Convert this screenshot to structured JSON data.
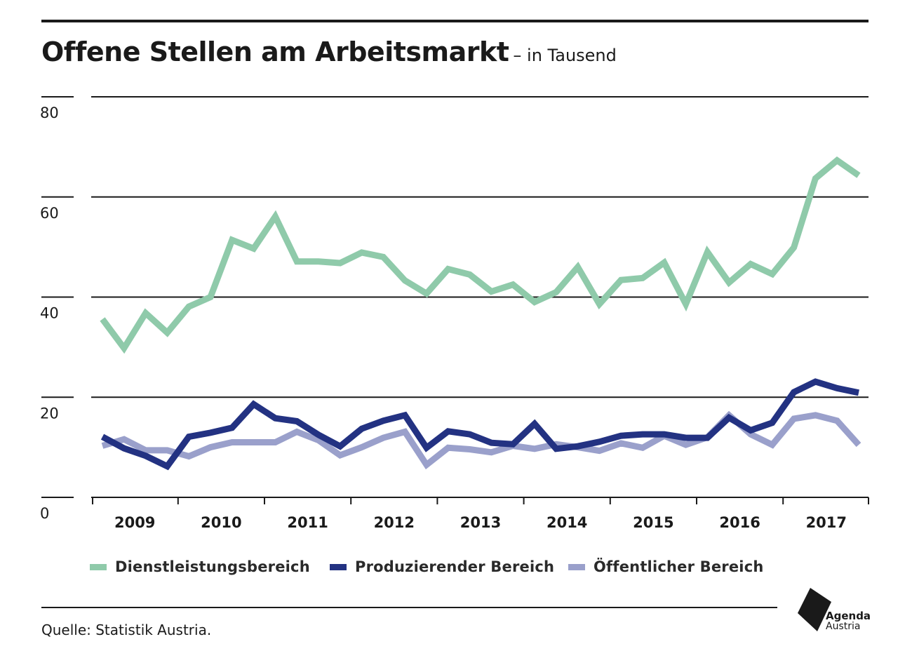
{
  "title": "Offene Stellen am Arbeitsmarkt",
  "subtitle": "– in Tausend",
  "source": "Quelle: Statistik Austria.",
  "logo": {
    "line1": "Agenda",
    "line2": "Austria",
    "icon": "agenda-austria-logo"
  },
  "colors": {
    "Dienstleistungsbereich": "#8fcaaa",
    "Produzierender Bereich": "#233282",
    "Öffentlicher Bereich": "#9aa0cb",
    "gridline": "#1a1a1a",
    "text": "#1a1a1a"
  },
  "chart_data": {
    "type": "line",
    "title": "Offene Stellen am Arbeitsmarkt",
    "subtitle": "– in Tausend",
    "xlabel": "",
    "ylabel": "",
    "ylim": [
      0,
      80
    ],
    "yticks": [
      0,
      20,
      40,
      60,
      80
    ],
    "grid": true,
    "legend_position": "bottom",
    "x_categories": [
      "2009",
      "2010",
      "2011",
      "2012",
      "2013",
      "2014",
      "2015",
      "2016",
      "2017"
    ],
    "x_periods": [
      "2009-Q1",
      "2009-Q2",
      "2009-Q3",
      "2009-Q4",
      "2010-Q1",
      "2010-Q2",
      "2010-Q3",
      "2010-Q4",
      "2011-Q1",
      "2011-Q2",
      "2011-Q3",
      "2011-Q4",
      "2012-Q1",
      "2012-Q2",
      "2012-Q3",
      "2012-Q4",
      "2013-Q1",
      "2013-Q2",
      "2013-Q3",
      "2013-Q4",
      "2014-Q1",
      "2014-Q2",
      "2014-Q3",
      "2014-Q4",
      "2015-Q1",
      "2015-Q2",
      "2015-Q3",
      "2015-Q4",
      "2016-Q1",
      "2016-Q2",
      "2016-Q3",
      "2016-Q4",
      "2017-Q1",
      "2017-Q2",
      "2017-Q3",
      "2017-Q4"
    ],
    "series": [
      {
        "name": "Dienstleistungsbereich",
        "values": [
          35.6,
          29.8,
          36.8,
          32.9,
          38.1,
          40.0,
          51.4,
          49.7,
          56.1,
          47.1,
          47.1,
          46.8,
          48.9,
          48.0,
          43.3,
          40.7,
          45.6,
          44.5,
          41.1,
          42.5,
          39.0,
          41.0,
          46.0,
          38.6,
          43.4,
          43.8,
          46.9,
          38.6,
          49.0,
          42.9,
          46.6,
          44.6,
          49.9,
          63.7,
          67.3,
          64.3
        ]
      },
      {
        "name": "Produzierender Bereich",
        "values": [
          12.1,
          9.8,
          8.3,
          6.2,
          12.1,
          12.9,
          13.9,
          18.6,
          15.8,
          15.2,
          12.5,
          10.2,
          13.7,
          15.3,
          16.4,
          9.9,
          13.2,
          12.6,
          10.9,
          10.6,
          14.7,
          9.7,
          10.2,
          11.1,
          12.3,
          12.6,
          12.6,
          11.9,
          11.9,
          15.9,
          13.4,
          14.9,
          21.0,
          23.1,
          21.8,
          20.9
        ]
      },
      {
        "name": "Öffentlicher Bereich",
        "values": [
          10.3,
          11.6,
          9.4,
          9.4,
          8.2,
          10.0,
          11.0,
          11.0,
          11.0,
          13.1,
          11.4,
          8.4,
          10.0,
          11.9,
          13.1,
          6.5,
          9.9,
          9.6,
          9.0,
          10.3,
          9.7,
          10.6,
          10.0,
          9.3,
          10.8,
          9.9,
          12.3,
          10.5,
          12.0,
          16.4,
          12.6,
          10.5,
          15.7,
          16.4,
          15.3,
          10.5
        ]
      }
    ]
  }
}
